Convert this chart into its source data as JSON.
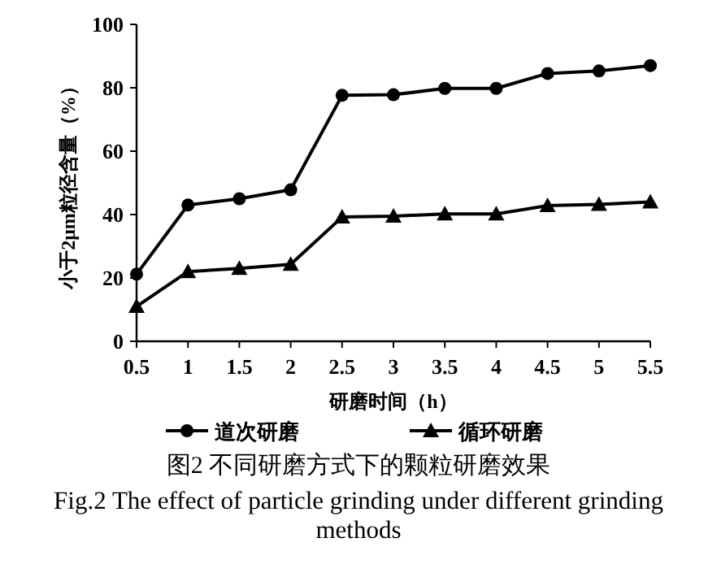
{
  "chart_data": {
    "type": "line",
    "xlabel": "研磨时间（h）",
    "ylabel": "小于2μm粒径含量（%）",
    "x": [
      0.5,
      1,
      1.5,
      2,
      2.5,
      3,
      3.5,
      4,
      4.5,
      5,
      5.5
    ],
    "xlim": [
      0.5,
      5.5
    ],
    "xticks": [
      0.5,
      1,
      1.5,
      2,
      2.5,
      3,
      3.5,
      4,
      4.5,
      5,
      5.5
    ],
    "ylim": [
      0,
      100
    ],
    "yticks": [
      0,
      20,
      40,
      60,
      80,
      100
    ],
    "series": [
      {
        "name": "道次研磨",
        "color": "#000000",
        "marker": "circle",
        "values": [
          21.2,
          43,
          45,
          47.8,
          77.6,
          77.8,
          79.8,
          79.8,
          84.5,
          85.3,
          87
        ]
      },
      {
        "name": "循环研磨",
        "color": "#000000",
        "marker": "triangle",
        "values": [
          11,
          22,
          23,
          24.3,
          39.2,
          39.5,
          40.2,
          40.2,
          42.8,
          43.2,
          44
        ]
      }
    ],
    "legend": "bottom",
    "grid": false,
    "annotations": [
      "图2 不同研磨方式下的颗粒研磨效果",
      "Fig.2 The effect of particle grinding under different grinding methods"
    ]
  }
}
